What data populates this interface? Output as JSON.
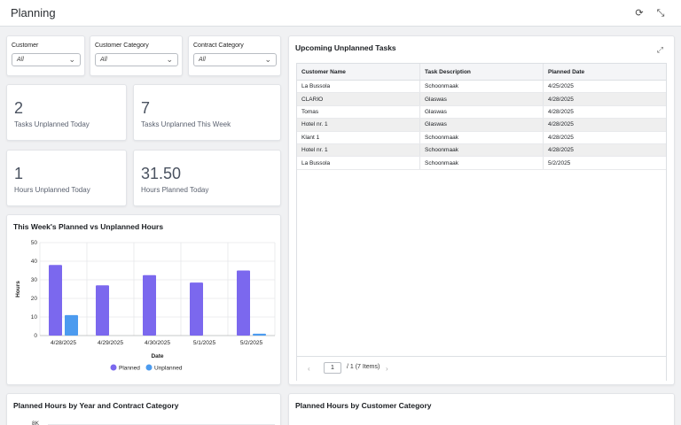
{
  "header": {
    "title": "Planning",
    "refresh_icon": "refresh-icon",
    "collapse_icon": "collapse-icon"
  },
  "filters": [
    {
      "label": "Customer",
      "value": "All"
    },
    {
      "label": "Customer Category",
      "value": "All"
    },
    {
      "label": "Contract Category",
      "value": "All"
    }
  ],
  "kpis": [
    {
      "value": "2",
      "label": "Tasks Unplanned Today"
    },
    {
      "value": "7",
      "label": "Tasks Unplanned This Week"
    },
    {
      "value": "1",
      "label": "Hours Unplanned Today"
    },
    {
      "value": "31.50",
      "label": "Hours Planned Today"
    }
  ],
  "tasks": {
    "title": "Upcoming Unplanned Tasks",
    "columns": [
      "Customer Name",
      "Task Description",
      "Planned Date"
    ],
    "rows": [
      [
        "La Bussola",
        "Schoonmaak",
        "4/25/2025"
      ],
      [
        "CLARIO",
        "Glaswas",
        "4/28/2025"
      ],
      [
        "Tomas",
        "Glaswas",
        "4/28/2025"
      ],
      [
        "Hotel nr. 1",
        "Glaswas",
        "4/28/2025"
      ],
      [
        "Klant 1",
        "Schoonmaak",
        "4/28/2025"
      ],
      [
        "Hotel nr. 1",
        "Schoonmaak",
        "4/28/2025"
      ],
      [
        "La Bussola",
        "Schoonmaak",
        "5/2/2025"
      ]
    ],
    "pager": {
      "page": "1",
      "text": "/  1 (7 Items)"
    }
  },
  "weekly_chart": {
    "title": "This Week's Planned vs Unplanned Hours"
  },
  "chart_data": {
    "type": "bar",
    "title": "This Week's Planned vs Unplanned Hours",
    "xlabel": "Date",
    "ylabel": "Hours",
    "categories": [
      "4/28/2025",
      "4/29/2025",
      "4/30/2025",
      "5/1/2025",
      "5/2/2025"
    ],
    "series": [
      {
        "name": "Planned",
        "values": [
          38,
          27,
          32.5,
          28.5,
          35
        ],
        "color": "#7b68ee"
      },
      {
        "name": "Unplanned",
        "values": [
          11,
          0,
          0,
          0,
          1
        ],
        "color": "#4c9bef"
      }
    ],
    "ylim": [
      0,
      50
    ],
    "yticks": [
      "0",
      "10",
      "20",
      "30",
      "40",
      "50"
    ],
    "grid": true,
    "legend": "bottom"
  },
  "bottom": {
    "year_title": "Planned Hours by Year and Contract Category",
    "year_first_tick": "8K",
    "category_title": "Planned Hours by Customer Category"
  }
}
